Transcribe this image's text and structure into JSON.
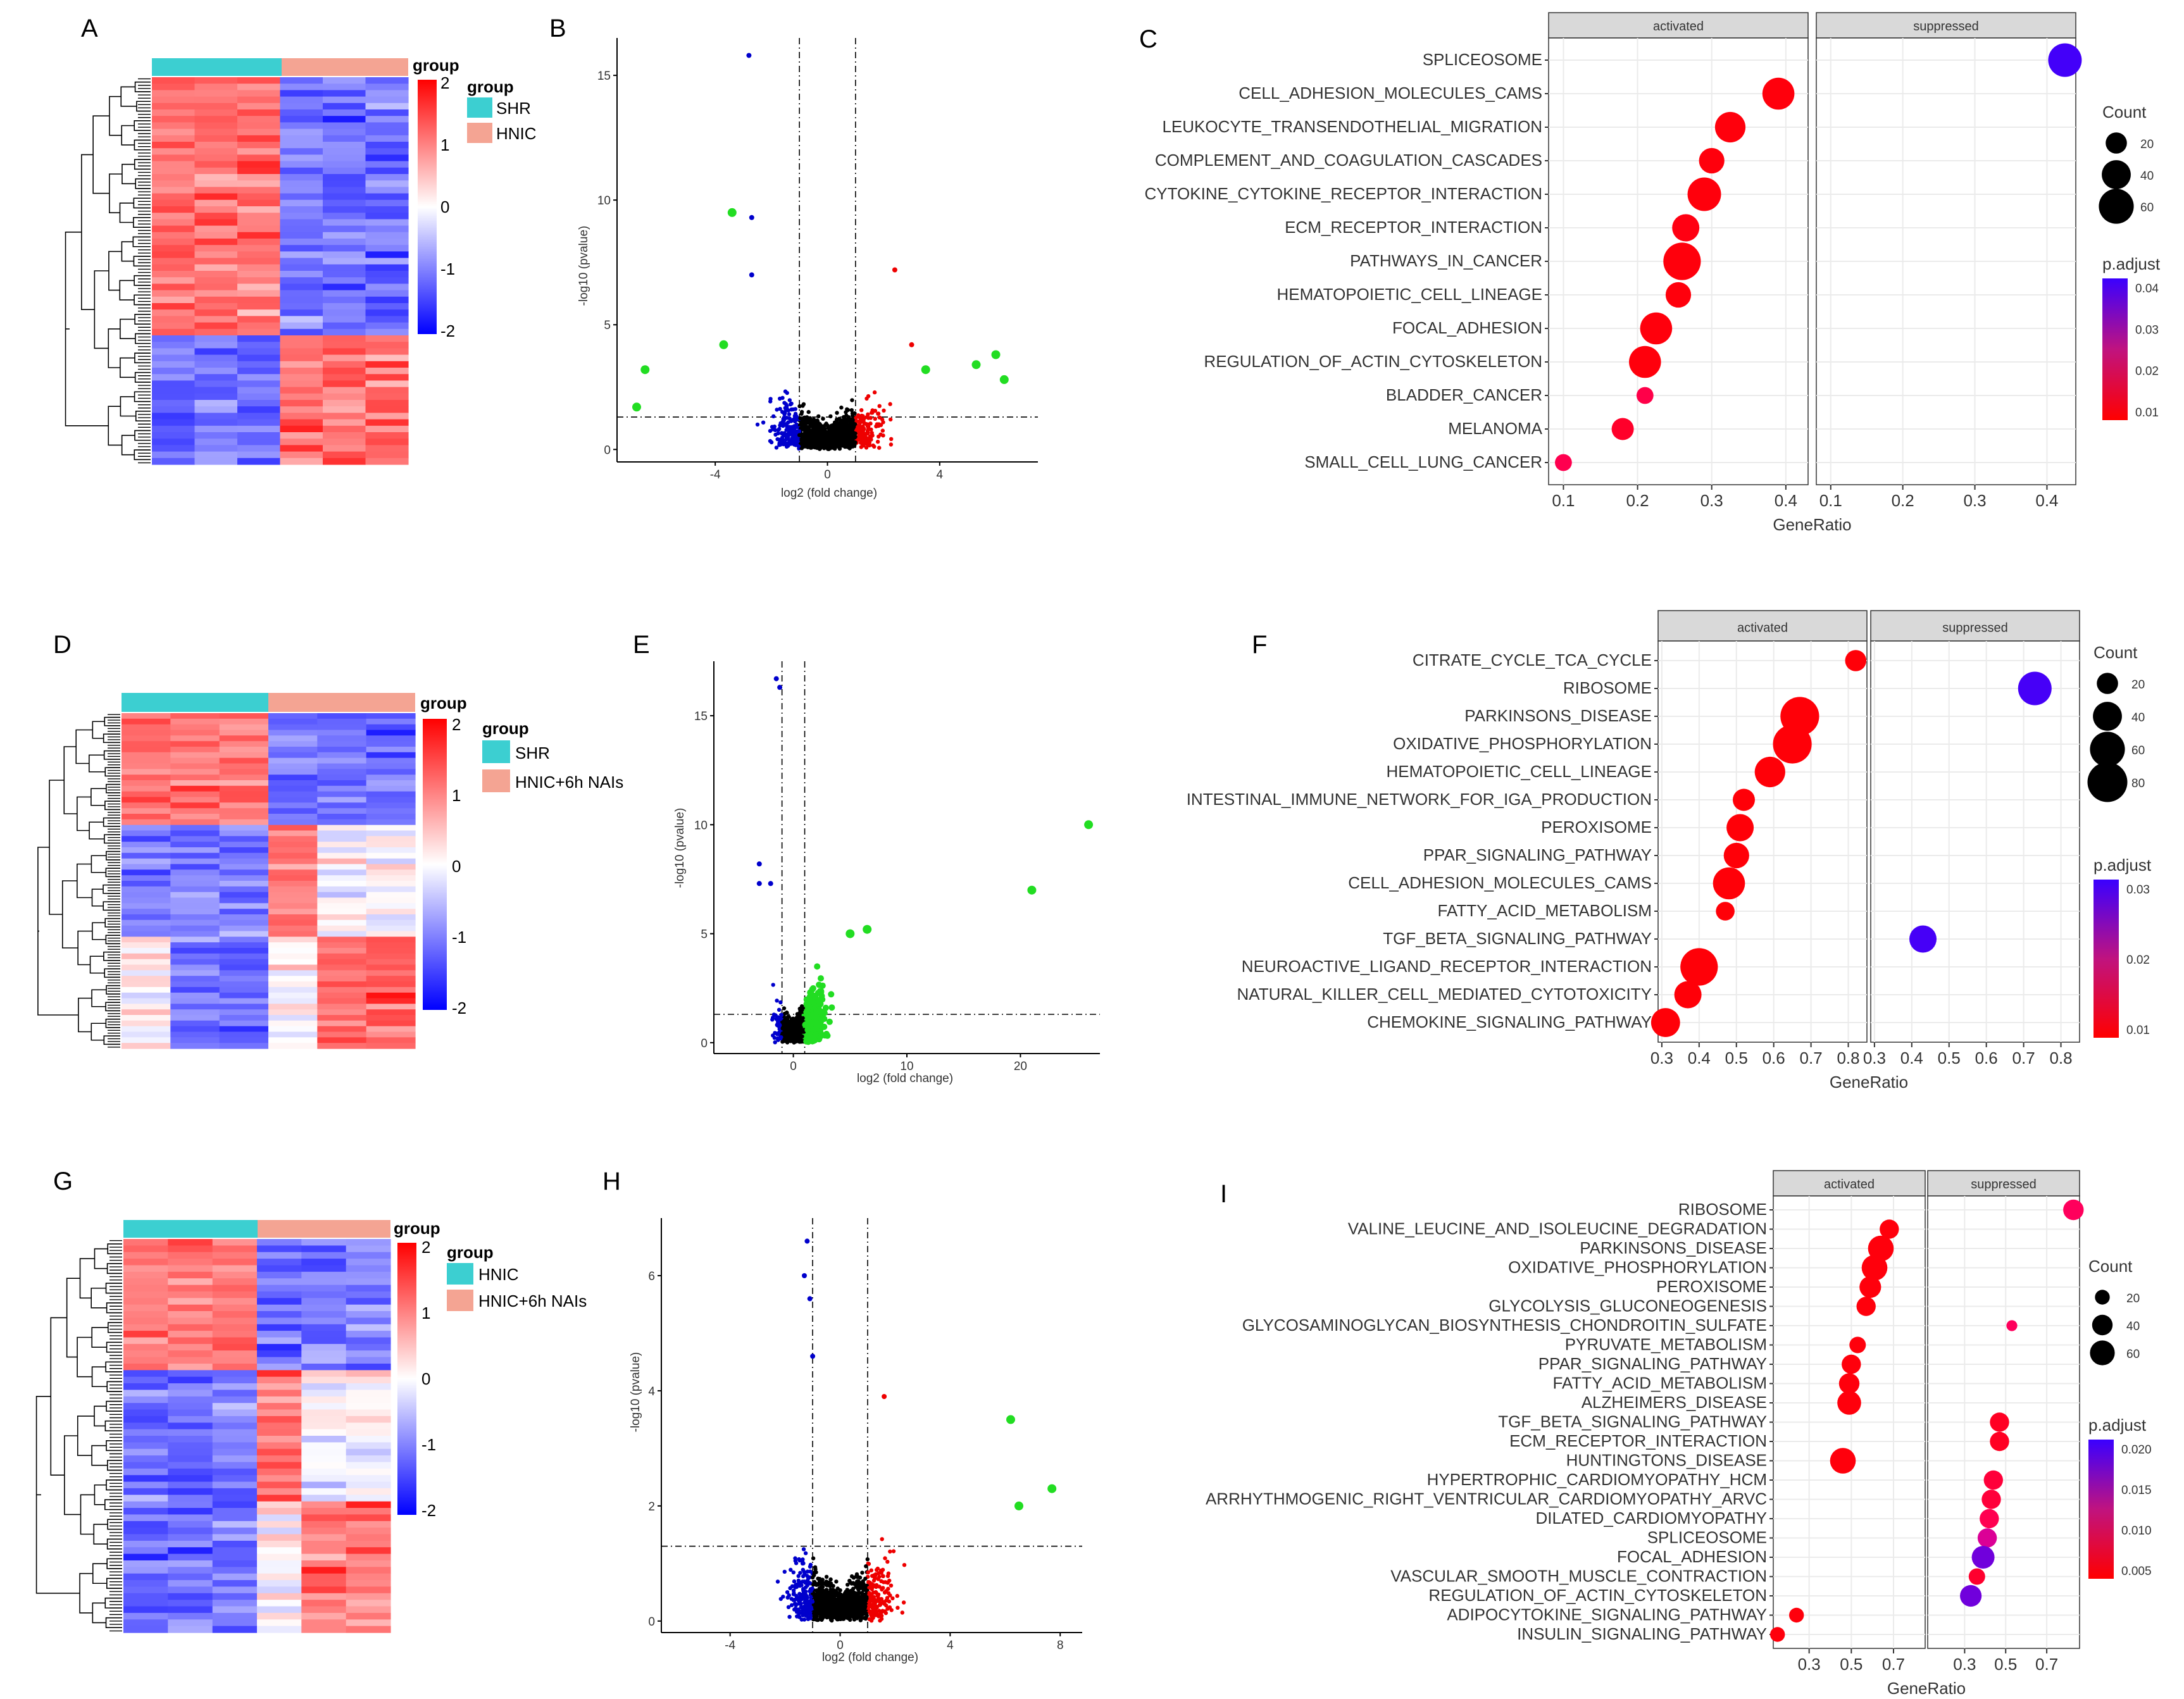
{
  "panel_letters": [
    "A",
    "B",
    "C",
    "D",
    "E",
    "F",
    "G",
    "H",
    "I"
  ],
  "heatmap_common": {
    "group_header": "group",
    "scale_ticks": [
      "2",
      "1",
      "0",
      "-1",
      "-2"
    ],
    "colors": {
      "high": "#ff0000",
      "mid": "#ffffff",
      "low": "#0000ff",
      "g1": "#3ccfd1",
      "g2": "#f4a493"
    }
  },
  "heatmaps": [
    {
      "legend_title": "group",
      "groups": [
        "SHR",
        "HNIC"
      ],
      "pattern": [
        [
          1,
          1,
          1,
          -1,
          -1,
          -1
        ],
        [
          1,
          1,
          1,
          -1,
          -1,
          -1
        ],
        [
          -1,
          -1,
          -1,
          1,
          1,
          1
        ]
      ]
    },
    {
      "legend_title": "group",
      "groups": [
        "SHR",
        "HNIC+6h NAIs"
      ],
      "pattern": [
        [
          1,
          1,
          1,
          -1,
          -1,
          -1
        ],
        [
          -1,
          -1,
          -1,
          1,
          0,
          0
        ],
        [
          0,
          -1,
          -1,
          0,
          1,
          1
        ]
      ]
    },
    {
      "legend_title": "group",
      "groups": [
        "HNIC",
        "HNIC+6h NAIs"
      ],
      "pattern": [
        [
          1,
          1,
          1,
          -1,
          -1,
          -1
        ],
        [
          -1,
          -1,
          -1,
          1,
          0,
          0
        ],
        [
          -1,
          -1,
          -1,
          0,
          1,
          1
        ]
      ]
    }
  ],
  "volcano_common": {
    "xlabel": "log2 (fold change)",
    "ylabel": "-log10 (pvalue)"
  },
  "chart_data": [
    {
      "type": "scatter",
      "panel": "B",
      "xlabel": "log2 (fold change)",
      "ylabel": "-log10 (pvalue)",
      "xlim": [
        -7.5,
        7.5
      ],
      "ylim": [
        -0.5,
        16.5
      ],
      "xticks": [
        -4,
        0,
        4
      ],
      "yticks": [
        0,
        5,
        10,
        15
      ],
      "vlines": [
        -1,
        1
      ],
      "hline": 1.3,
      "highlight_points": [
        [
          -2.8,
          15.8
        ],
        [
          -3.4,
          9.5
        ],
        [
          -2.7,
          9.3
        ],
        [
          -2.7,
          7.0
        ],
        [
          -3.7,
          4.2
        ],
        [
          -6.5,
          3.2
        ],
        [
          -6.8,
          1.7
        ],
        [
          2.4,
          7.2
        ],
        [
          3.0,
          4.2
        ],
        [
          3.5,
          3.2
        ],
        [
          6.0,
          3.8
        ],
        [
          5.3,
          3.4
        ],
        [
          6.3,
          2.8
        ]
      ]
    },
    {
      "type": "scatter",
      "panel": "E",
      "xlabel": "log2 (fold change)",
      "ylabel": "-log10 (pvalue)",
      "xlim": [
        -7,
        27
      ],
      "ylim": [
        -0.5,
        17.5
      ],
      "xticks": [
        0,
        10,
        20
      ],
      "yticks": [
        0,
        5,
        10,
        15
      ],
      "vlines": [
        -1,
        1
      ],
      "hline": 1.3,
      "highlight_points": [
        [
          -1.5,
          16.7
        ],
        [
          -1.2,
          16.3
        ],
        [
          -3.0,
          8.2
        ],
        [
          -3.0,
          7.3
        ],
        [
          -2.0,
          7.3
        ],
        [
          26,
          10.0
        ],
        [
          21,
          7.0
        ],
        [
          6.5,
          5.2
        ],
        [
          5.0,
          5.0
        ]
      ]
    },
    {
      "type": "scatter",
      "panel": "H",
      "xlabel": "log2 (fold change)",
      "ylabel": "-log10 (pvalue)",
      "xlim": [
        -6.5,
        8.8
      ],
      "ylim": [
        -0.2,
        7.0
      ],
      "xticks": [
        -4,
        0,
        4,
        8
      ],
      "yticks": [
        0,
        2,
        4,
        6
      ],
      "vlines": [
        -1,
        1
      ],
      "hline": 1.3,
      "highlight_points": [
        [
          -1.2,
          6.6
        ],
        [
          -1.3,
          6.0
        ],
        [
          -1.1,
          5.6
        ],
        [
          -1.0,
          4.6
        ],
        [
          1.6,
          3.9
        ],
        [
          6.2,
          3.5
        ],
        [
          7.7,
          2.3
        ],
        [
          6.5,
          2.0
        ]
      ]
    },
    {
      "type": "scatter",
      "panel": "C",
      "title": "",
      "xlabel": "GeneRatio",
      "ylabel": "",
      "facets": [
        "activated",
        "suppressed"
      ],
      "facet_xlim": [
        [
          0.08,
          0.43
        ],
        [
          0.08,
          0.44
        ]
      ],
      "xticks": [
        0.1,
        0.2,
        0.3,
        0.4
      ],
      "categories": [
        "SPLICEOSOME",
        "CELL_ADHESION_MOLECULES_CAMS",
        "LEUKOCYTE_TRANSENDOTHELIAL_MIGRATION",
        "COMPLEMENT_AND_COAGULATION_CASCADES",
        "CYTOKINE_CYTOKINE_RECEPTOR_INTERACTION",
        "ECM_RECEPTOR_INTERACTION",
        "PATHWAYS_IN_CANCER",
        "HEMATOPOIETIC_CELL_LINEAGE",
        "FOCAL_ADHESION",
        "REGULATION_OF_ACTIN_CYTOSKELETON",
        "BLADDER_CANCER",
        "MELANOMA",
        "SMALL_CELL_LUNG_CANCER"
      ],
      "points": [
        {
          "term": "SPLICEOSOME",
          "facet": "suppressed",
          "x": 0.425,
          "count": 55,
          "p": 0.044
        },
        {
          "term": "CELL_ADHESION_MOLECULES_CAMS",
          "facet": "activated",
          "x": 0.39,
          "count": 50,
          "p": 0.005
        },
        {
          "term": "LEUKOCYTE_TRANSENDOTHELIAL_MIGRATION",
          "facet": "activated",
          "x": 0.325,
          "count": 45,
          "p": 0.005
        },
        {
          "term": "COMPLEMENT_AND_COAGULATION_CASCADES",
          "facet": "activated",
          "x": 0.3,
          "count": 30,
          "p": 0.005
        },
        {
          "term": "CYTOKINE_CYTOKINE_RECEPTOR_INTERACTION",
          "facet": "activated",
          "x": 0.29,
          "count": 55,
          "p": 0.005
        },
        {
          "term": "ECM_RECEPTOR_INTERACTION",
          "facet": "activated",
          "x": 0.265,
          "count": 35,
          "p": 0.006
        },
        {
          "term": "PATHWAYS_IN_CANCER",
          "facet": "activated",
          "x": 0.26,
          "count": 70,
          "p": 0.005
        },
        {
          "term": "HEMATOPOIETIC_CELL_LINEAGE",
          "facet": "activated",
          "x": 0.255,
          "count": 30,
          "p": 0.005
        },
        {
          "term": "FOCAL_ADHESION",
          "facet": "activated",
          "x": 0.225,
          "count": 50,
          "p": 0.005
        },
        {
          "term": "REGULATION_OF_ACTIN_CYTOSKELETON",
          "facet": "activated",
          "x": 0.21,
          "count": 50,
          "p": 0.005
        },
        {
          "term": "BLADDER_CANCER",
          "facet": "activated",
          "x": 0.21,
          "count": 12,
          "p": 0.015
        },
        {
          "term": "MELANOMA",
          "facet": "activated",
          "x": 0.18,
          "count": 22,
          "p": 0.01
        },
        {
          "term": "SMALL_CELL_LUNG_CANCER",
          "facet": "activated",
          "x": 0.1,
          "count": 12,
          "p": 0.016
        }
      ],
      "size_legend": {
        "title": "Count",
        "values": [
          20,
          40,
          60
        ]
      },
      "color_legend": {
        "title": "p.adjust",
        "ticks": [
          "0.04",
          "0.03",
          "0.02",
          "0.01"
        ],
        "range": [
          0.003,
          0.045
        ],
        "low": "#ff0000",
        "high": "#3a00ff"
      }
    },
    {
      "type": "scatter",
      "panel": "F",
      "xlabel": "GeneRatio",
      "ylabel": "",
      "facets": [
        "activated",
        "suppressed"
      ],
      "facet_xlim": [
        [
          0.29,
          0.85
        ],
        [
          0.29,
          0.85
        ]
      ],
      "xticks": [
        0.3,
        0.4,
        0.5,
        0.6,
        0.7,
        0.8
      ],
      "categories": [
        "CITRATE_CYCLE_TCA_CYCLE",
        "RIBOSOME",
        "PARKINSONS_DISEASE",
        "OXIDATIVE_PHOSPHORYLATION",
        "HEMATOPOIETIC_CELL_LINEAGE",
        "INTESTINAL_IMMUNE_NETWORK_FOR_IGA_PRODUCTION",
        "PEROXISOME",
        "PPAR_SIGNALING_PATHWAY",
        "CELL_ADHESION_MOLECULES_CAMS",
        "FATTY_ACID_METABOLISM",
        "TGF_BETA_SIGNALING_PATHWAY",
        "NEUROACTIVE_LIGAND_RECEPTOR_INTERACTION",
        "NATURAL_KILLER_CELL_MEDIATED_CYTOTOXICITY",
        "CHEMOKINE_SIGNALING_PATHWAY"
      ],
      "points": [
        {
          "term": "CITRATE_CYCLE_TCA_CYCLE",
          "facet": "activated",
          "x": 0.82,
          "count": 20,
          "p": 0.003
        },
        {
          "term": "RIBOSOME",
          "facet": "suppressed",
          "x": 0.73,
          "count": 55,
          "p": 0.033
        },
        {
          "term": "PARKINSONS_DISEASE",
          "facet": "activated",
          "x": 0.67,
          "count": 75,
          "p": 0.003
        },
        {
          "term": "OXIDATIVE_PHOSPHORYLATION",
          "facet": "activated",
          "x": 0.65,
          "count": 75,
          "p": 0.003
        },
        {
          "term": "HEMATOPOIETIC_CELL_LINEAGE",
          "facet": "activated",
          "x": 0.59,
          "count": 45,
          "p": 0.003
        },
        {
          "term": "INTESTINAL_IMMUNE_NETWORK_FOR_IGA_PRODUCTION",
          "facet": "activated",
          "x": 0.52,
          "count": 22,
          "p": 0.003
        },
        {
          "term": "PEROXISOME",
          "facet": "activated",
          "x": 0.51,
          "count": 35,
          "p": 0.003
        },
        {
          "term": "PPAR_SIGNALING_PATHWAY",
          "facet": "activated",
          "x": 0.5,
          "count": 30,
          "p": 0.003
        },
        {
          "term": "CELL_ADHESION_MOLECULES_CAMS",
          "facet": "activated",
          "x": 0.48,
          "count": 50,
          "p": 0.003
        },
        {
          "term": "FATTY_ACID_METABOLISM",
          "facet": "activated",
          "x": 0.47,
          "count": 15,
          "p": 0.003
        },
        {
          "term": "TGF_BETA_SIGNALING_PATHWAY",
          "facet": "suppressed",
          "x": 0.43,
          "count": 35,
          "p": 0.033
        },
        {
          "term": "NEUROACTIVE_LIGAND_RECEPTOR_INTERACTION",
          "facet": "activated",
          "x": 0.4,
          "count": 70,
          "p": 0.003
        },
        {
          "term": "NATURAL_KILLER_CELL_MEDIATED_CYTOTOXICITY",
          "facet": "activated",
          "x": 0.37,
          "count": 35,
          "p": 0.003
        },
        {
          "term": "CHEMOKINE_SIGNALING_PATHWAY",
          "facet": "activated",
          "x": 0.31,
          "count": 40,
          "p": 0.003
        }
      ],
      "size_legend": {
        "title": "Count",
        "values": [
          20,
          40,
          60,
          80
        ]
      },
      "color_legend": {
        "title": "p.adjust",
        "ticks": [
          "0.03",
          "0.02",
          "0.01"
        ],
        "range": [
          0.002,
          0.034
        ],
        "low": "#ff0000",
        "high": "#3a00ff"
      }
    },
    {
      "type": "scatter",
      "panel": "I",
      "xlabel": "GeneRatio",
      "ylabel": "",
      "facets": [
        "activated",
        "suppressed"
      ],
      "facet_xlim": [
        [
          0.13,
          0.85
        ],
        [
          0.12,
          0.86
        ]
      ],
      "xticks": [
        0.3,
        0.5,
        0.7
      ],
      "categories": [
        "RIBOSOME",
        "VALINE_LEUCINE_AND_ISOLEUCINE_DEGRADATION",
        "PARKINSONS_DISEASE",
        "OXIDATIVE_PHOSPHORYLATION",
        "PEROXISOME",
        "GLYCOLYSIS_GLUCONEOGENESIS",
        "GLYCOSAMINOGLYCAN_BIOSYNTHESIS_CHONDROITIN_SULFATE",
        "PYRUVATE_METABOLISM",
        "PPAR_SIGNALING_PATHWAY",
        "FATTY_ACID_METABOLISM",
        "ALZHEIMERS_DISEASE",
        "TGF_BETA_SIGNALING_PATHWAY",
        "ECM_RECEPTOR_INTERACTION",
        "HUNTINGTONS_DISEASE",
        "HYPERTROPHIC_CARDIOMYOPATHY_HCM",
        "ARRHYTHMOGENIC_RIGHT_VENTRICULAR_CARDIOMYOPATHY_ARVC",
        "DILATED_CARDIOMYOPATHY",
        "SPLICEOSOME",
        "FOCAL_ADHESION",
        "VASCULAR_SMOOTH_MUSCLE_CONTRACTION",
        "REGULATION_OF_ACTIN_CYTOSKELETON",
        "ADIPOCYTOKINE_SIGNALING_PATHWAY",
        "INSULIN_SIGNALING_PATHWAY"
      ],
      "points": [
        {
          "term": "RIBOSOME",
          "facet": "suppressed",
          "x": 0.83,
          "count": 40,
          "p": 0.009
        },
        {
          "term": "VALINE_LEUCINE_AND_ISOLEUCINE_DEGRADATION",
          "facet": "activated",
          "x": 0.68,
          "count": 35,
          "p": 0.002
        },
        {
          "term": "PARKINSONS_DISEASE",
          "facet": "activated",
          "x": 0.64,
          "count": 65,
          "p": 0.002
        },
        {
          "term": "OXIDATIVE_PHOSPHORYLATION",
          "facet": "activated",
          "x": 0.61,
          "count": 65,
          "p": 0.002
        },
        {
          "term": "PEROXISOME",
          "facet": "activated",
          "x": 0.59,
          "count": 45,
          "p": 0.002
        },
        {
          "term": "GLYCOLYSIS_GLUCONEOGENESIS",
          "facet": "activated",
          "x": 0.57,
          "count": 35,
          "p": 0.002
        },
        {
          "term": "GLYCOSAMINOGLYCAN_BIOSYNTHESIS_CHONDROITIN_SULFATE",
          "facet": "suppressed",
          "x": 0.53,
          "count": 10,
          "p": 0.009
        },
        {
          "term": "PYRUVATE_METABOLISM",
          "facet": "activated",
          "x": 0.53,
          "count": 25,
          "p": 0.002
        },
        {
          "term": "PPAR_SIGNALING_PATHWAY",
          "facet": "activated",
          "x": 0.5,
          "count": 35,
          "p": 0.002
        },
        {
          "term": "FATTY_ACID_METABOLISM",
          "facet": "activated",
          "x": 0.49,
          "count": 40,
          "p": 0.002
        },
        {
          "term": "ALZHEIMERS_DISEASE",
          "facet": "activated",
          "x": 0.49,
          "count": 55,
          "p": 0.002
        },
        {
          "term": "TGF_BETA_SIGNALING_PATHWAY",
          "facet": "suppressed",
          "x": 0.47,
          "count": 35,
          "p": 0.004
        },
        {
          "term": "ECM_RECEPTOR_INTERACTION",
          "facet": "suppressed",
          "x": 0.47,
          "count": 35,
          "p": 0.004
        },
        {
          "term": "HUNTINGTONS_DISEASE",
          "facet": "activated",
          "x": 0.46,
          "count": 65,
          "p": 0.002
        },
        {
          "term": "HYPERTROPHIC_CARDIOMYOPATHY_HCM",
          "facet": "suppressed",
          "x": 0.44,
          "count": 35,
          "p": 0.006
        },
        {
          "term": "ARRHYTHMOGENIC_RIGHT_VENTRICULAR_CARDIOMYOPATHY_ARVC",
          "facet": "suppressed",
          "x": 0.43,
          "count": 35,
          "p": 0.006
        },
        {
          "term": "DILATED_CARDIOMYOPATHY",
          "facet": "suppressed",
          "x": 0.42,
          "count": 35,
          "p": 0.008
        },
        {
          "term": "SPLICEOSOME",
          "facet": "suppressed",
          "x": 0.41,
          "count": 35,
          "p": 0.014
        },
        {
          "term": "FOCAL_ADHESION",
          "facet": "suppressed",
          "x": 0.39,
          "count": 50,
          "p": 0.02
        },
        {
          "term": "VASCULAR_SMOOTH_MUSCLE_CONTRACTION",
          "facet": "suppressed",
          "x": 0.36,
          "count": 25,
          "p": 0.005
        },
        {
          "term": "REGULATION_OF_ACTIN_CYTOSKELETON",
          "facet": "suppressed",
          "x": 0.33,
          "count": 45,
          "p": 0.02
        },
        {
          "term": "ADIPOCYTOKINE_SIGNALING_PATHWAY",
          "facet": "activated",
          "x": 0.24,
          "count": 20,
          "p": 0.002
        },
        {
          "term": "INSULIN_SIGNALING_PATHWAY",
          "facet": "activated",
          "x": 0.15,
          "count": 20,
          "p": 0.002
        }
      ],
      "size_legend": {
        "title": "Count",
        "values": [
          20,
          40,
          60
        ]
      },
      "color_legend": {
        "title": "p.adjust",
        "ticks": [
          "0.020",
          "0.015",
          "0.010",
          "0.005"
        ],
        "range": [
          0.001,
          0.023
        ],
        "low": "#ff0000",
        "high": "#3a00ff"
      }
    }
  ]
}
